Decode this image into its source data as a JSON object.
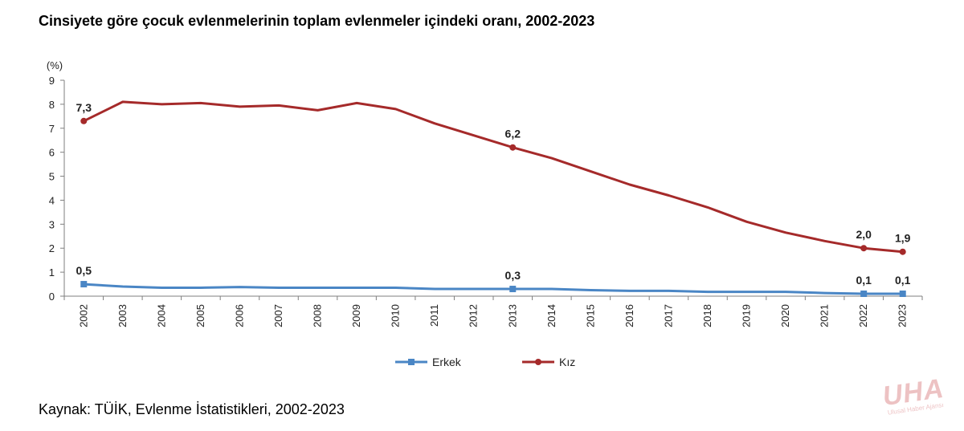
{
  "title": "Cinsiyete göre çocuk evlenmelerinin toplam evlenmeler içindeki oranı, 2002-2023",
  "source": "Kaynak: TÜİK, Evlenme İstatistikleri, 2002-2023",
  "watermark": {
    "logo": "UHA",
    "subtitle": "Ulusal Haber Ajansı"
  },
  "chart_data": {
    "type": "line",
    "title": "Cinsiyete göre çocuk evlenmelerinin toplam evlenmeler içindeki oranı, 2002-2023",
    "ylabel": "(%)",
    "xlabel": "",
    "ylim": [
      0,
      9
    ],
    "yticks": [
      0,
      1,
      2,
      3,
      4,
      5,
      6,
      7,
      8,
      9
    ],
    "grid": false,
    "legend": "bottom",
    "x": [
      "2002",
      "2003",
      "2004",
      "2005",
      "2006",
      "2007",
      "2008",
      "2009",
      "2010",
      "2011",
      "2012",
      "2013",
      "2014",
      "2015",
      "2016",
      "2017",
      "2018",
      "2019",
      "2020",
      "2021",
      "2022",
      "2023"
    ],
    "series": [
      {
        "name": "Erkek",
        "color": "#4a86c5",
        "marker": "square",
        "values": [
          0.5,
          0.4,
          0.35,
          0.35,
          0.38,
          0.35,
          0.35,
          0.35,
          0.35,
          0.3,
          0.3,
          0.3,
          0.3,
          0.25,
          0.22,
          0.22,
          0.18,
          0.18,
          0.18,
          0.13,
          0.1,
          0.1
        ],
        "labels": [
          {
            "index": 0,
            "text": "0,5"
          },
          {
            "index": 11,
            "text": "0,3"
          },
          {
            "index": 20,
            "text": "0,1"
          },
          {
            "index": 21,
            "text": "0,1"
          }
        ]
      },
      {
        "name": "Kız",
        "color": "#a52a2a",
        "marker": "circle",
        "values": [
          7.3,
          8.1,
          8.0,
          8.05,
          7.9,
          7.95,
          7.75,
          8.05,
          7.8,
          7.2,
          6.7,
          6.2,
          5.75,
          5.2,
          4.65,
          4.2,
          3.7,
          3.1,
          2.65,
          2.3,
          2.0,
          1.85
        ],
        "labels": [
          {
            "index": 0,
            "text": "7,3"
          },
          {
            "index": 11,
            "text": "6,2"
          },
          {
            "index": 20,
            "text": "2,0"
          },
          {
            "index": 21,
            "text": "1,9"
          }
        ]
      }
    ]
  }
}
